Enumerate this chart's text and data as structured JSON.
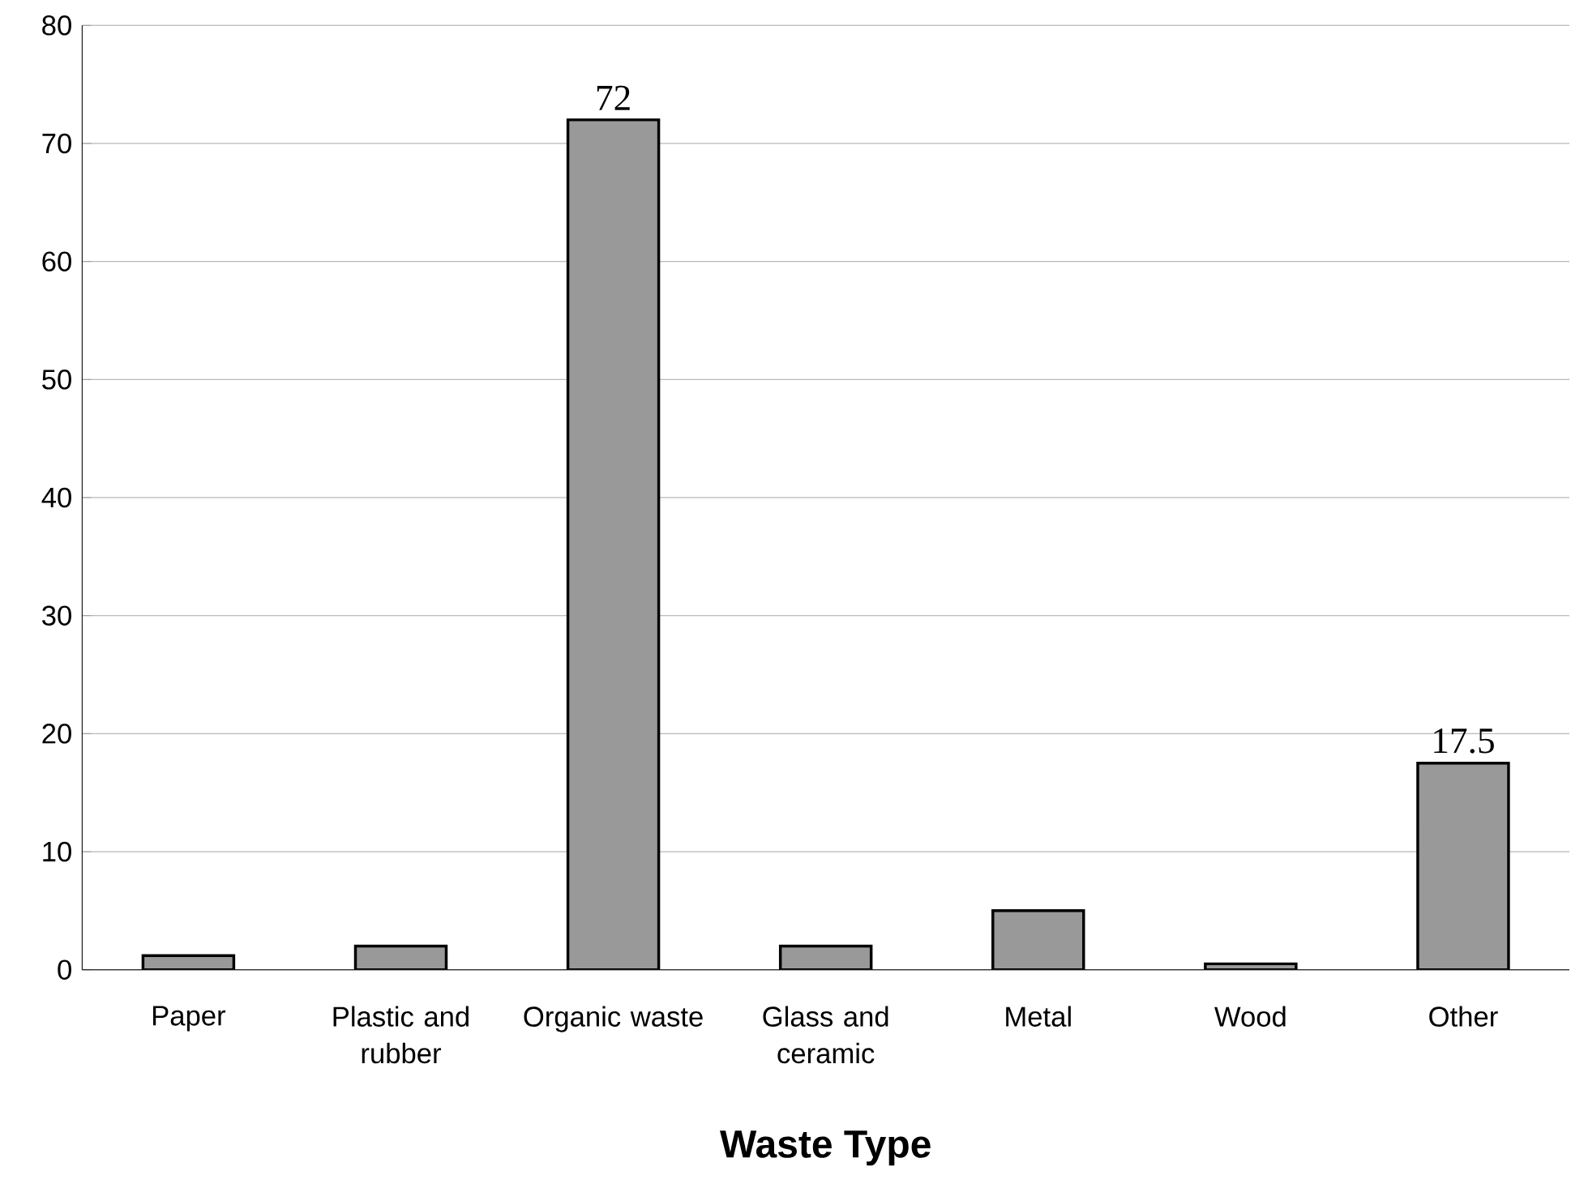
{
  "chart_data": {
    "type": "bar",
    "xlabel": "**Waste Type**",
    "categories": [
      "Paper",
      "Plastic and rubber",
      "Organic waste",
      "Glass and ceramic",
      "Metal",
      "Wood",
      "Other"
    ],
    "values": [
      1.2,
      2,
      72,
      2,
      5,
      0.5,
      17.5
    ],
    "value_labels": [
      null,
      null,
      "72",
      null,
      null,
      null,
      "17.5"
    ],
    "color": "#999999",
    "ylim": [
      0,
      80
    ],
    "yticks": [
      0,
      10,
      20,
      30,
      40,
      50,
      60,
      70,
      80
    ],
    "grid": "y"
  }
}
